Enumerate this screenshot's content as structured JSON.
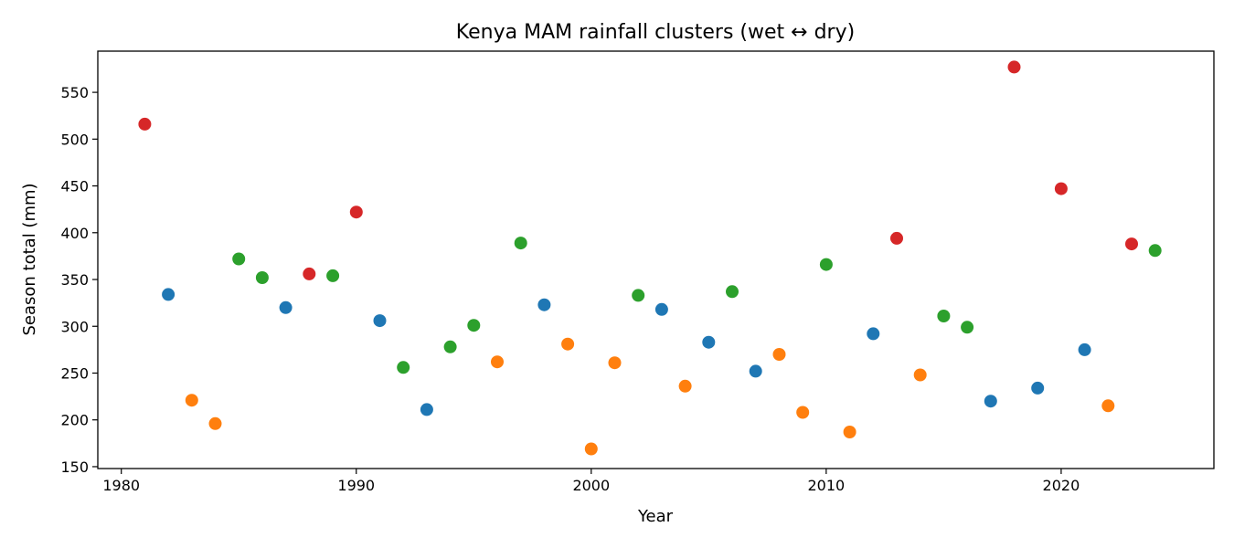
{
  "chart_data": {
    "type": "scatter",
    "title": "Kenya MAM rainfall clusters (wet ↔ dry)",
    "xlabel": "Year",
    "ylabel": "Season total (mm)",
    "xlim": [
      1979,
      2026.5
    ],
    "ylim": [
      148,
      594
    ],
    "xticks": [
      1980,
      1990,
      2000,
      2010,
      2020
    ],
    "yticks": [
      150,
      200,
      250,
      300,
      350,
      400,
      450,
      500,
      550
    ],
    "grid": false,
    "legend": "none",
    "cluster_colors": {
      "blue": "#1f77b4",
      "orange": "#ff7f0e",
      "green": "#2ca02c",
      "red": "#d62728"
    },
    "points": [
      {
        "x": 1981,
        "y": 516,
        "cluster": "red"
      },
      {
        "x": 1982,
        "y": 334,
        "cluster": "blue"
      },
      {
        "x": 1983,
        "y": 221,
        "cluster": "orange"
      },
      {
        "x": 1984,
        "y": 196,
        "cluster": "orange"
      },
      {
        "x": 1985,
        "y": 372,
        "cluster": "green"
      },
      {
        "x": 1986,
        "y": 352,
        "cluster": "green"
      },
      {
        "x": 1987,
        "y": 320,
        "cluster": "blue"
      },
      {
        "x": 1988,
        "y": 356,
        "cluster": "red"
      },
      {
        "x": 1989,
        "y": 354,
        "cluster": "green"
      },
      {
        "x": 1990,
        "y": 422,
        "cluster": "red"
      },
      {
        "x": 1991,
        "y": 306,
        "cluster": "blue"
      },
      {
        "x": 1992,
        "y": 256,
        "cluster": "green"
      },
      {
        "x": 1993,
        "y": 211,
        "cluster": "blue"
      },
      {
        "x": 1994,
        "y": 278,
        "cluster": "green"
      },
      {
        "x": 1995,
        "y": 301,
        "cluster": "green"
      },
      {
        "x": 1996,
        "y": 262,
        "cluster": "orange"
      },
      {
        "x": 1997,
        "y": 389,
        "cluster": "green"
      },
      {
        "x": 1998,
        "y": 323,
        "cluster": "blue"
      },
      {
        "x": 1999,
        "y": 281,
        "cluster": "orange"
      },
      {
        "x": 2000,
        "y": 169,
        "cluster": "orange"
      },
      {
        "x": 2001,
        "y": 261,
        "cluster": "orange"
      },
      {
        "x": 2002,
        "y": 333,
        "cluster": "green"
      },
      {
        "x": 2003,
        "y": 318,
        "cluster": "blue"
      },
      {
        "x": 2004,
        "y": 236,
        "cluster": "orange"
      },
      {
        "x": 2005,
        "y": 283,
        "cluster": "blue"
      },
      {
        "x": 2006,
        "y": 337,
        "cluster": "green"
      },
      {
        "x": 2007,
        "y": 252,
        "cluster": "blue"
      },
      {
        "x": 2008,
        "y": 270,
        "cluster": "orange"
      },
      {
        "x": 2009,
        "y": 208,
        "cluster": "orange"
      },
      {
        "x": 2010,
        "y": 366,
        "cluster": "green"
      },
      {
        "x": 2011,
        "y": 187,
        "cluster": "orange"
      },
      {
        "x": 2012,
        "y": 292,
        "cluster": "blue"
      },
      {
        "x": 2013,
        "y": 394,
        "cluster": "red"
      },
      {
        "x": 2014,
        "y": 248,
        "cluster": "orange"
      },
      {
        "x": 2015,
        "y": 311,
        "cluster": "green"
      },
      {
        "x": 2016,
        "y": 299,
        "cluster": "green"
      },
      {
        "x": 2017,
        "y": 220,
        "cluster": "blue"
      },
      {
        "x": 2018,
        "y": 577,
        "cluster": "red"
      },
      {
        "x": 2019,
        "y": 234,
        "cluster": "blue"
      },
      {
        "x": 2020,
        "y": 447,
        "cluster": "red"
      },
      {
        "x": 2021,
        "y": 275,
        "cluster": "blue"
      },
      {
        "x": 2022,
        "y": 215,
        "cluster": "orange"
      },
      {
        "x": 2023,
        "y": 388,
        "cluster": "red"
      },
      {
        "x": 2024,
        "y": 381,
        "cluster": "green"
      }
    ]
  }
}
